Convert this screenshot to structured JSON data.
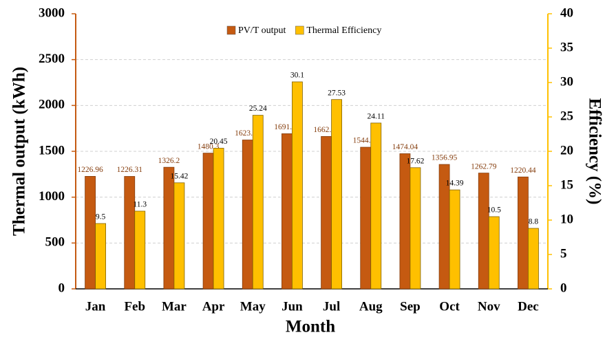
{
  "chart_data": {
    "type": "bar",
    "x_label": "Month",
    "y_label": "Thermal output (kWh)",
    "y2_label": "Efficiency (%)",
    "categories": [
      "Jan",
      "Feb",
      "Mar",
      "Apr",
      "May",
      "Jun",
      "Jul",
      "Aug",
      "Sep",
      "Oct",
      "Nov",
      "Dec"
    ],
    "series": [
      {
        "name": "PV/T output",
        "color": "#c55a11",
        "values": [
          1226.96,
          1226.31,
          1326.2,
          1480.3,
          1623.62,
          1691.99,
          1662.24,
          1544.62,
          1474.04,
          1356.95,
          1262.79,
          1220.44
        ]
      },
      {
        "name": "Thermal Efficiency",
        "color": "#ffc000",
        "axis": "y2",
        "values": [
          9.5,
          11.3,
          15.42,
          20.45,
          25.24,
          30.1,
          27.53,
          24.11,
          17.62,
          14.39,
          10.5,
          8.8
        ]
      }
    ],
    "ylim": [
      0,
      3000
    ],
    "yticks": [
      0,
      500,
      1000,
      1500,
      2000,
      2500,
      3000
    ],
    "y2lim": [
      0,
      40
    ],
    "y2ticks": [
      0,
      5,
      10,
      15,
      20,
      25,
      30,
      35,
      40
    ],
    "grid": true,
    "legend": "top"
  }
}
